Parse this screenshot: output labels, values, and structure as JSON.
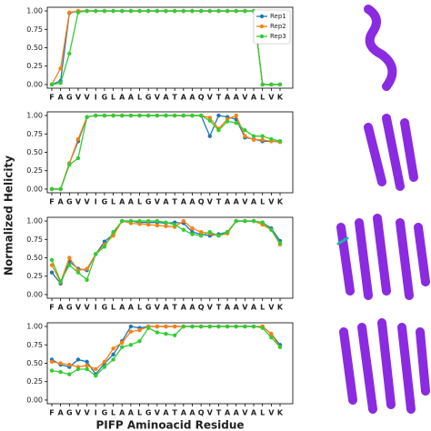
{
  "ylabel": "Normalized Helicity",
  "chart_data": [
    {
      "type": "line",
      "categories": [
        "F",
        "A",
        "G",
        "V",
        "V",
        "I",
        "G",
        "L",
        "A",
        "A",
        "L",
        "G",
        "V",
        "A",
        "T",
        "A",
        "A",
        "Q",
        "V",
        "T",
        "A",
        "A",
        "V",
        "A",
        "L",
        "V",
        "K"
      ],
      "ylim": [
        -0.05,
        1.05
      ],
      "yticks": [
        {
          "value": 0,
          "label": "0.00"
        },
        {
          "value": 0.25,
          "label": "0.25"
        },
        {
          "value": 0.5,
          "label": "0.50"
        },
        {
          "value": 0.75,
          "label": "0.75"
        },
        {
          "value": 1,
          "label": "1.00"
        }
      ],
      "legend": "upper right",
      "series": [
        {
          "name": "Rep1",
          "color": "#1f77b4",
          "values": [
            0,
            0.05,
            0.97,
            1,
            1,
            1,
            1,
            1,
            1,
            1,
            1,
            1,
            1,
            1,
            1,
            1,
            1,
            1,
            1,
            1,
            1,
            1,
            1,
            1,
            0,
            0,
            0
          ]
        },
        {
          "name": "Rep2",
          "color": "#ff7f0e",
          "values": [
            0,
            0.22,
            0.98,
            1,
            1,
            1,
            1,
            1,
            1,
            1,
            1,
            1,
            1,
            1,
            1,
            1,
            1,
            1,
            1,
            1,
            1,
            1,
            1,
            1,
            0,
            0,
            0
          ]
        },
        {
          "name": "Rep3",
          "color": "#32cd32",
          "values": [
            0,
            0.02,
            0.42,
            0.98,
            1,
            1,
            1,
            1,
            1,
            1,
            1,
            1,
            1,
            1,
            1,
            1,
            1,
            1,
            1,
            1,
            1,
            1,
            1,
            1,
            0,
            0,
            0
          ]
        }
      ]
    },
    {
      "type": "line",
      "categories": [
        "F",
        "A",
        "G",
        "V",
        "V",
        "I",
        "G",
        "L",
        "A",
        "A",
        "L",
        "G",
        "V",
        "A",
        "T",
        "A",
        "A",
        "Q",
        "V",
        "T",
        "A",
        "A",
        "V",
        "A",
        "L",
        "V",
        "K"
      ],
      "ylim": [
        -0.05,
        1.05
      ],
      "yticks": [
        {
          "value": 0,
          "label": "0.00"
        },
        {
          "value": 0.25,
          "label": "0.25"
        },
        {
          "value": 0.5,
          "label": "0.50"
        },
        {
          "value": 0.75,
          "label": "0.75"
        },
        {
          "value": 1,
          "label": "1.00"
        }
      ],
      "series": [
        {
          "name": "Rep1",
          "color": "#1f77b4",
          "values": [
            0,
            0,
            0.35,
            0.65,
            0.98,
            1,
            1,
            1,
            1,
            1,
            1,
            1,
            1,
            1,
            1,
            1,
            1,
            1,
            0.72,
            1,
            0.98,
            0.95,
            0.7,
            0.68,
            0.65,
            0.65,
            0.65
          ]
        },
        {
          "name": "Rep2",
          "color": "#ff7f0e",
          "values": [
            0,
            0,
            0.35,
            0.68,
            0.98,
            1,
            1,
            1,
            1,
            1,
            1,
            1,
            1,
            1,
            1,
            1,
            1,
            1,
            0.97,
            0.82,
            0.95,
            1,
            0.72,
            0.67,
            0.67,
            0.65,
            0.64
          ]
        },
        {
          "name": "Rep3",
          "color": "#32cd32",
          "values": [
            0,
            0,
            0.33,
            0.42,
            0.98,
            1,
            1,
            1,
            1,
            1,
            1,
            1,
            1,
            1,
            1,
            1,
            1,
            1,
            0.93,
            0.8,
            0.92,
            0.9,
            0.8,
            0.72,
            0.72,
            0.68,
            0.65
          ]
        }
      ]
    },
    {
      "type": "line",
      "categories": [
        "F",
        "A",
        "G",
        "V",
        "V",
        "I",
        "G",
        "L",
        "A",
        "A",
        "L",
        "G",
        "V",
        "A",
        "T",
        "A",
        "A",
        "Q",
        "V",
        "T",
        "A",
        "A",
        "V",
        "A",
        "L",
        "V",
        "K"
      ],
      "ylim": [
        -0.05,
        1.05
      ],
      "yticks": [
        {
          "value": 0,
          "label": "0.00"
        },
        {
          "value": 0.25,
          "label": "0.25"
        },
        {
          "value": 0.5,
          "label": "0.50"
        },
        {
          "value": 0.75,
          "label": "0.75"
        },
        {
          "value": 1,
          "label": "1.00"
        }
      ],
      "series": [
        {
          "name": "Rep1",
          "color": "#1f77b4",
          "values": [
            0.3,
            0.15,
            0.45,
            0.35,
            0.33,
            0.55,
            0.72,
            0.82,
            1,
            1,
            0.98,
            0.98,
            0.98,
            0.97,
            0.98,
            0.97,
            0.85,
            0.82,
            0.8,
            0.82,
            0.85,
            1,
            1,
            1,
            0.98,
            0.9,
            0.73
          ]
        },
        {
          "name": "Rep2",
          "color": "#ff7f0e",
          "values": [
            0.4,
            0.17,
            0.5,
            0.33,
            0.35,
            0.55,
            0.68,
            0.8,
            1,
            0.97,
            0.96,
            0.95,
            0.94,
            0.93,
            0.92,
            1,
            0.9,
            0.85,
            0.83,
            0.8,
            0.83,
            1,
            1,
            1,
            0.95,
            0.88,
            0.68
          ]
        },
        {
          "name": "Rep3",
          "color": "#32cd32",
          "values": [
            0.47,
            0.18,
            0.4,
            0.3,
            0.2,
            0.55,
            0.65,
            0.85,
            1,
            1,
            1,
            1,
            1,
            0.98,
            0.95,
            0.88,
            0.82,
            0.8,
            0.85,
            0.8,
            0.85,
            1,
            1,
            1,
            0.98,
            0.88,
            0.7
          ]
        }
      ]
    },
    {
      "type": "line",
      "categories": [
        "F",
        "A",
        "G",
        "V",
        "V",
        "I",
        "G",
        "L",
        "A",
        "A",
        "L",
        "G",
        "V",
        "A",
        "T",
        "A",
        "A",
        "Q",
        "V",
        "T",
        "A",
        "A",
        "V",
        "A",
        "L",
        "V",
        "K"
      ],
      "xlabel": "PIFP Aminoacid Residue",
      "ylim": [
        -0.05,
        1.05
      ],
      "yticks": [
        {
          "value": 0,
          "label": "0.00"
        },
        {
          "value": 0.25,
          "label": "0.25"
        },
        {
          "value": 0.5,
          "label": "0.50"
        },
        {
          "value": 0.75,
          "label": "0.75"
        },
        {
          "value": 1,
          "label": "1.00"
        }
      ],
      "series": [
        {
          "name": "Rep1",
          "color": "#1f77b4",
          "values": [
            0.55,
            0.48,
            0.45,
            0.55,
            0.52,
            0.35,
            0.5,
            0.62,
            0.8,
            1,
            0.98,
            1,
            1,
            1,
            1,
            1,
            1,
            1,
            1,
            1,
            1,
            1,
            1,
            1,
            1,
            0.9,
            0.75
          ]
        },
        {
          "name": "Rep2",
          "color": "#ff7f0e",
          "values": [
            0.52,
            0.5,
            0.48,
            0.45,
            0.47,
            0.42,
            0.52,
            0.7,
            0.78,
            0.93,
            0.95,
            1,
            1,
            1,
            1,
            1,
            1,
            1,
            1,
            1,
            1,
            1,
            1,
            1,
            1,
            0.9,
            0.72
          ]
        },
        {
          "name": "Rep3",
          "color": "#32cd32",
          "values": [
            0.4,
            0.38,
            0.35,
            0.42,
            0.42,
            0.33,
            0.45,
            0.55,
            0.72,
            0.75,
            0.8,
            0.98,
            0.92,
            0.9,
            0.88,
            1,
            1,
            1,
            1,
            1,
            1,
            1,
            1,
            1,
            0.98,
            0.85,
            0.72
          ]
        }
      ]
    }
  ]
}
